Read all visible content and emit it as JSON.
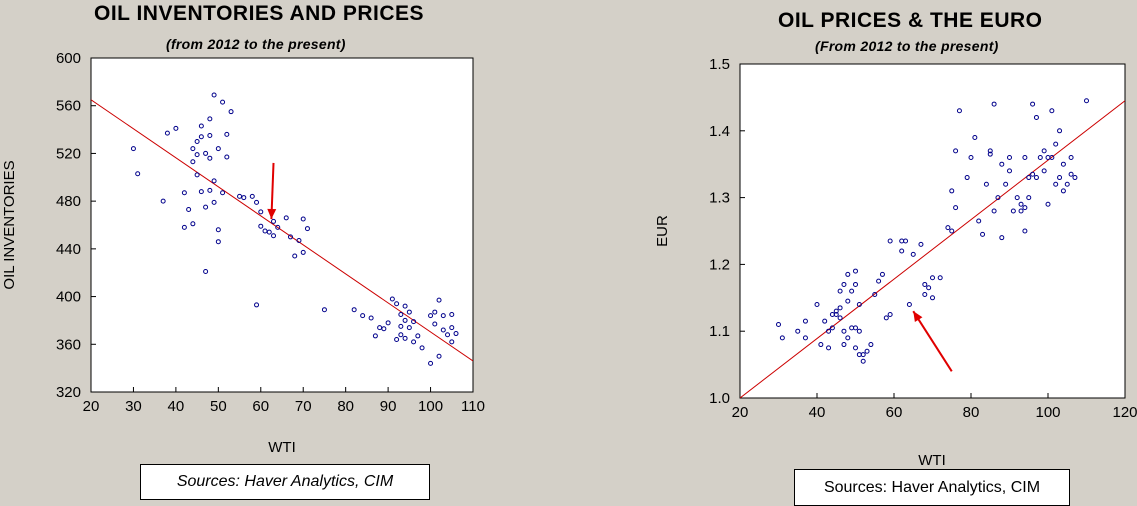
{
  "chart_data": [
    {
      "type": "scatter",
      "title": "OIL INVENTORIES AND PRICES",
      "subtitle": "(from 2012 to the present)",
      "xlabel": "WTI",
      "ylabel": "OIL INVENTORIES",
      "xlim": [
        20,
        110
      ],
      "ylim": [
        320,
        600
      ],
      "xticks": [
        "20",
        "30",
        "40",
        "50",
        "60",
        "70",
        "80",
        "90",
        "100",
        "110"
      ],
      "yticks": [
        "320",
        "360",
        "400",
        "440",
        "480",
        "520",
        "560",
        "600"
      ],
      "grid": false,
      "legend": "none",
      "source": "Sources: Haver Analytics, CIM",
      "point_color": "#00008b",
      "fit_color": "#cc0000",
      "fit_line": [
        [
          20,
          565
        ],
        [
          110,
          346
        ]
      ],
      "arrow_color": "#e00000",
      "arrow": {
        "from": [
          63,
          512
        ],
        "to": [
          62.5,
          465
        ]
      },
      "points": [
        [
          30,
          524
        ],
        [
          31,
          503
        ],
        [
          37,
          480
        ],
        [
          38,
          537
        ],
        [
          40,
          541
        ],
        [
          42,
          487
        ],
        [
          42,
          458
        ],
        [
          44,
          461
        ],
        [
          43,
          473
        ],
        [
          44,
          513
        ],
        [
          44,
          524
        ],
        [
          45,
          519
        ],
        [
          45,
          530
        ],
        [
          45,
          502
        ],
        [
          46,
          488
        ],
        [
          46,
          543
        ],
        [
          46,
          534
        ],
        [
          47,
          520
        ],
        [
          47,
          421
        ],
        [
          47,
          475
        ],
        [
          48,
          549
        ],
        [
          48,
          489
        ],
        [
          48,
          516
        ],
        [
          48,
          535
        ],
        [
          49,
          569
        ],
        [
          49,
          497
        ],
        [
          49,
          479
        ],
        [
          50,
          524
        ],
        [
          50,
          446
        ],
        [
          50,
          456
        ],
        [
          51,
          563
        ],
        [
          51,
          487
        ],
        [
          52,
          517
        ],
        [
          52,
          536
        ],
        [
          53,
          555
        ],
        [
          55,
          484
        ],
        [
          56,
          483
        ],
        [
          58,
          484
        ],
        [
          59,
          393
        ],
        [
          59,
          479
        ],
        [
          60,
          459
        ],
        [
          60,
          471
        ],
        [
          61,
          455
        ],
        [
          62,
          454
        ],
        [
          63,
          463
        ],
        [
          63,
          451
        ],
        [
          64,
          458
        ],
        [
          66,
          466
        ],
        [
          67,
          450
        ],
        [
          68,
          434
        ],
        [
          69,
          447
        ],
        [
          70,
          465
        ],
        [
          70,
          437
        ],
        [
          71,
          457
        ],
        [
          75,
          389
        ],
        [
          82,
          389
        ],
        [
          84,
          384
        ],
        [
          86,
          382
        ],
        [
          87,
          367
        ],
        [
          88,
          374
        ],
        [
          89,
          373
        ],
        [
          90,
          378
        ],
        [
          91,
          398
        ],
        [
          92,
          364
        ],
        [
          92,
          394
        ],
        [
          93,
          385
        ],
        [
          93,
          368
        ],
        [
          93,
          375
        ],
        [
          94,
          392
        ],
        [
          94,
          365
        ],
        [
          94,
          380
        ],
        [
          95,
          387
        ],
        [
          95,
          374
        ],
        [
          96,
          379
        ],
        [
          96,
          362
        ],
        [
          97,
          367
        ],
        [
          98,
          357
        ],
        [
          100,
          344
        ],
        [
          100,
          384
        ],
        [
          101,
          377
        ],
        [
          101,
          387
        ],
        [
          102,
          397
        ],
        [
          102,
          350
        ],
        [
          103,
          372
        ],
        [
          103,
          384
        ],
        [
          104,
          368
        ],
        [
          105,
          385
        ],
        [
          105,
          374
        ],
        [
          106,
          369
        ],
        [
          105,
          362
        ]
      ]
    },
    {
      "type": "scatter",
      "title": "OIL PRICES & THE EURO",
      "subtitle": "(From 2012 to the present)",
      "xlabel": "WTI",
      "ylabel": "EUR",
      "xlim": [
        20,
        120
      ],
      "ylim": [
        1.0,
        1.5
      ],
      "xticks": [
        "20",
        "40",
        "60",
        "80",
        "100",
        "120"
      ],
      "yticks": [
        "1.0",
        "1.1",
        "1.2",
        "1.3",
        "1.4",
        "1.5"
      ],
      "grid": false,
      "legend": "none",
      "source": "Sources: Haver Analytics, CIM",
      "point_color": "#00008b",
      "fit_color": "#cc0000",
      "fit_line": [
        [
          20,
          1.0
        ],
        [
          120,
          1.445
        ]
      ],
      "arrow_color": "#e00000",
      "arrow": {
        "from": [
          75,
          1.04
        ],
        "to": [
          65,
          1.13
        ]
      },
      "points": [
        [
          30,
          1.11
        ],
        [
          31,
          1.09
        ],
        [
          35,
          1.1
        ],
        [
          37,
          1.09
        ],
        [
          37,
          1.115
        ],
        [
          40,
          1.14
        ],
        [
          41,
          1.08
        ],
        [
          42,
          1.115
        ],
        [
          43,
          1.075
        ],
        [
          43,
          1.1
        ],
        [
          44,
          1.105
        ],
        [
          44,
          1.125
        ],
        [
          45,
          1.125
        ],
        [
          45,
          1.13
        ],
        [
          46,
          1.135
        ],
        [
          46,
          1.16
        ],
        [
          46,
          1.12
        ],
        [
          47,
          1.1
        ],
        [
          47,
          1.08
        ],
        [
          47,
          1.17
        ],
        [
          48,
          1.185
        ],
        [
          48,
          1.145
        ],
        [
          48,
          1.09
        ],
        [
          49,
          1.16
        ],
        [
          49,
          1.105
        ],
        [
          50,
          1.19
        ],
        [
          50,
          1.17
        ],
        [
          50,
          1.075
        ],
        [
          50,
          1.105
        ],
        [
          51,
          1.14
        ],
        [
          51,
          1.1
        ],
        [
          51,
          1.065
        ],
        [
          52,
          1.055
        ],
        [
          52,
          1.065
        ],
        [
          53,
          1.07
        ],
        [
          54,
          1.08
        ],
        [
          55,
          1.155
        ],
        [
          56,
          1.175
        ],
        [
          57,
          1.185
        ],
        [
          58,
          1.12
        ],
        [
          59,
          1.125
        ],
        [
          59,
          1.235
        ],
        [
          62,
          1.235
        ],
        [
          62,
          1.22
        ],
        [
          63,
          1.235
        ],
        [
          64,
          1.14
        ],
        [
          65,
          1.215
        ],
        [
          67,
          1.23
        ],
        [
          68,
          1.155
        ],
        [
          68,
          1.17
        ],
        [
          69,
          1.165
        ],
        [
          70,
          1.15
        ],
        [
          70,
          1.18
        ],
        [
          72,
          1.18
        ],
        [
          74,
          1.255
        ],
        [
          75,
          1.25
        ],
        [
          75,
          1.31
        ],
        [
          76,
          1.285
        ],
        [
          76,
          1.37
        ],
        [
          77,
          1.43
        ],
        [
          79,
          1.33
        ],
        [
          80,
          1.36
        ],
        [
          81,
          1.39
        ],
        [
          82,
          1.265
        ],
        [
          83,
          1.245
        ],
        [
          84,
          1.32
        ],
        [
          85,
          1.37
        ],
        [
          85,
          1.365
        ],
        [
          86,
          1.28
        ],
        [
          86,
          1.44
        ],
        [
          87,
          1.3
        ],
        [
          88,
          1.24
        ],
        [
          88,
          1.35
        ],
        [
          89,
          1.32
        ],
        [
          90,
          1.34
        ],
        [
          90,
          1.36
        ],
        [
          91,
          1.28
        ],
        [
          92,
          1.3
        ],
        [
          93,
          1.29
        ],
        [
          93,
          1.28
        ],
        [
          94,
          1.25
        ],
        [
          94,
          1.285
        ],
        [
          94,
          1.36
        ],
        [
          95,
          1.33
        ],
        [
          95,
          1.3
        ],
        [
          96,
          1.335
        ],
        [
          96,
          1.44
        ],
        [
          97,
          1.42
        ],
        [
          97,
          1.33
        ],
        [
          98,
          1.36
        ],
        [
          99,
          1.37
        ],
        [
          99,
          1.34
        ],
        [
          100,
          1.29
        ],
        [
          100,
          1.36
        ],
        [
          101,
          1.36
        ],
        [
          101,
          1.43
        ],
        [
          102,
          1.32
        ],
        [
          102,
          1.38
        ],
        [
          103,
          1.33
        ],
        [
          103,
          1.4
        ],
        [
          104,
          1.31
        ],
        [
          104,
          1.35
        ],
        [
          105,
          1.32
        ],
        [
          106,
          1.36
        ],
        [
          106,
          1.335
        ],
        [
          107,
          1.33
        ],
        [
          110,
          1.445
        ]
      ]
    }
  ]
}
